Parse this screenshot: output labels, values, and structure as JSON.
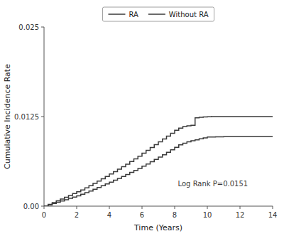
{
  "chart_data": {
    "type": "step",
    "title": "",
    "xlabel": "Time (Years)",
    "ylabel": "Cumulative Incidence Rate",
    "xlim": [
      0,
      14
    ],
    "ylim": [
      0,
      0.025
    ],
    "xticks": [
      0,
      2,
      4,
      6,
      8,
      10,
      12,
      14
    ],
    "yticks": [
      {
        "value": 0.0,
        "label": "0.00"
      },
      0.0125,
      0.025
    ],
    "grid": false,
    "legend": "top",
    "annotations": [
      {
        "text": "Log Rank P=0.0151",
        "x": 8.2,
        "y": 0.0028
      }
    ],
    "series": [
      {
        "name": "RA",
        "color": "#3a3a3a",
        "x": [
          0.0,
          0.25,
          0.5,
          0.75,
          1.0,
          1.25,
          1.5,
          1.75,
          2.0,
          2.25,
          2.5,
          2.75,
          3.0,
          3.25,
          3.5,
          3.75,
          4.0,
          4.25,
          4.5,
          4.75,
          5.0,
          5.25,
          5.5,
          5.75,
          6.0,
          6.25,
          6.5,
          6.75,
          7.0,
          7.25,
          7.5,
          7.75,
          8.0,
          8.25,
          8.5,
          8.75,
          9.0,
          9.25,
          9.5,
          9.75,
          10.0,
          10.25,
          10.5,
          10.75,
          11.0,
          11.25,
          11.5,
          11.75,
          12.0,
          12.5,
          13.0,
          13.5,
          14.0
        ],
        "values": [
          0.0,
          0.00025,
          0.0005,
          0.00075,
          0.001,
          0.00125,
          0.0015,
          0.00175,
          0.002,
          0.00225,
          0.00255,
          0.00285,
          0.00318,
          0.0035,
          0.00382,
          0.00415,
          0.00448,
          0.00482,
          0.00516,
          0.0055,
          0.00585,
          0.00622,
          0.0066,
          0.00698,
          0.00738,
          0.00778,
          0.00818,
          0.00858,
          0.00898,
          0.00938,
          0.00978,
          0.01018,
          0.01058,
          0.0109,
          0.0111,
          0.0112,
          0.01128,
          0.01233,
          0.0124,
          0.01246,
          0.01248,
          0.0125,
          0.0125,
          0.0125,
          0.0125,
          0.0125,
          0.0125,
          0.0125,
          0.0125,
          0.0125,
          0.0125,
          0.0125,
          0.0125
        ]
      },
      {
        "name": "Without RA",
        "color": "#3a3a3a",
        "x": [
          0.0,
          0.25,
          0.5,
          0.75,
          1.0,
          1.25,
          1.5,
          1.75,
          2.0,
          2.25,
          2.5,
          2.75,
          3.0,
          3.25,
          3.5,
          3.75,
          4.0,
          4.25,
          4.5,
          4.75,
          5.0,
          5.25,
          5.5,
          5.75,
          6.0,
          6.25,
          6.5,
          6.75,
          7.0,
          7.25,
          7.5,
          7.75,
          8.0,
          8.25,
          8.5,
          8.75,
          9.0,
          9.25,
          9.5,
          9.75,
          10.0,
          10.5,
          11.0,
          11.5,
          12.0,
          12.5,
          13.0,
          13.5,
          14.0
        ],
        "values": [
          0.0,
          0.00018,
          0.00036,
          0.00054,
          0.00072,
          0.0009,
          0.00108,
          0.00126,
          0.00145,
          0.00165,
          0.00188,
          0.00211,
          0.00235,
          0.0026,
          0.00285,
          0.0031,
          0.00336,
          0.00362,
          0.00388,
          0.00415,
          0.00442,
          0.0047,
          0.00498,
          0.00527,
          0.00557,
          0.00588,
          0.0062,
          0.00652,
          0.00685,
          0.00718,
          0.00752,
          0.00787,
          0.00822,
          0.00855,
          0.00878,
          0.00897,
          0.00912,
          0.00925,
          0.0094,
          0.00953,
          0.00965,
          0.00968,
          0.0097,
          0.0097,
          0.0097,
          0.0097,
          0.0097,
          0.0097,
          0.0097
        ]
      }
    ]
  }
}
